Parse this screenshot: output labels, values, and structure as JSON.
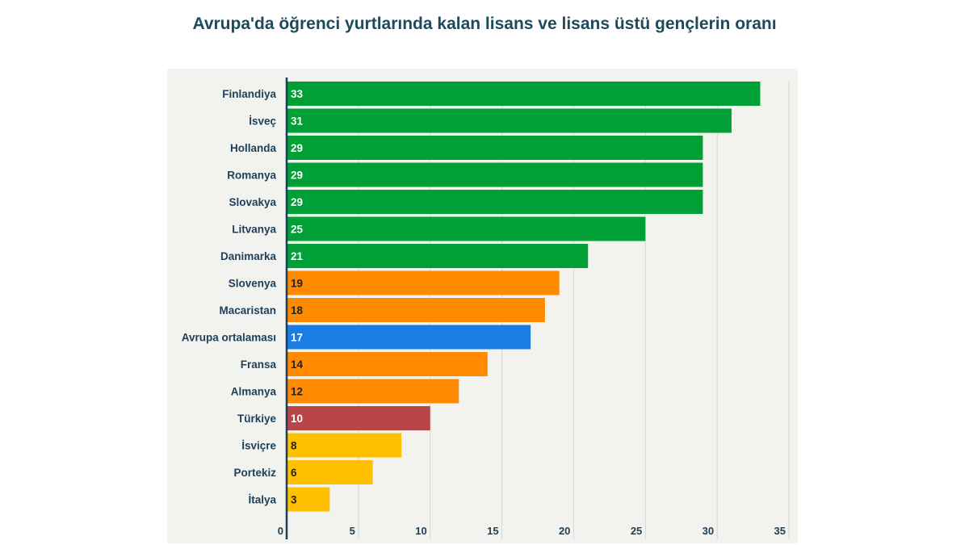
{
  "chart_data": {
    "type": "bar",
    "orientation": "horizontal",
    "title": "Avrupa'da öğrenci yurtlarında kalan lisans ve lisans üstü gençlerin oranı",
    "categories": [
      "Finlandiya",
      "İsveç",
      "Hollanda",
      "Romanya",
      "Slovakya",
      "Litvanya",
      "Danimarka",
      "Slovenya",
      "Macaristan",
      "Avrupa ortalaması",
      "Fransa",
      "Almanya",
      "Türkiye",
      "İsviçre",
      "Portekiz",
      "İtalya"
    ],
    "values": [
      33,
      31,
      29,
      29,
      29,
      25,
      21,
      19,
      18,
      17,
      14,
      12,
      10,
      8,
      6,
      3
    ],
    "colors": [
      "#00a037",
      "#00a037",
      "#00a037",
      "#00a037",
      "#00a037",
      "#00a037",
      "#00a037",
      "#ff8a00",
      "#ff8a00",
      "#1b7ce3",
      "#ff8a00",
      "#ff8a00",
      "#b94646",
      "#ffc000",
      "#ffc000",
      "#ffc000"
    ],
    "label_colors": [
      "#ffffff",
      "#ffffff",
      "#ffffff",
      "#ffffff",
      "#ffffff",
      "#ffffff",
      "#ffffff",
      "#222222",
      "#222222",
      "#ffffff",
      "#222222",
      "#222222",
      "#ffffff",
      "#222222",
      "#222222",
      "#222222"
    ],
    "xlim": [
      0,
      35
    ],
    "xticks": [
      "0",
      "5",
      "10",
      "15",
      "20",
      "25",
      "30",
      "35"
    ],
    "grid": true,
    "xlabel": "",
    "ylabel": ""
  }
}
